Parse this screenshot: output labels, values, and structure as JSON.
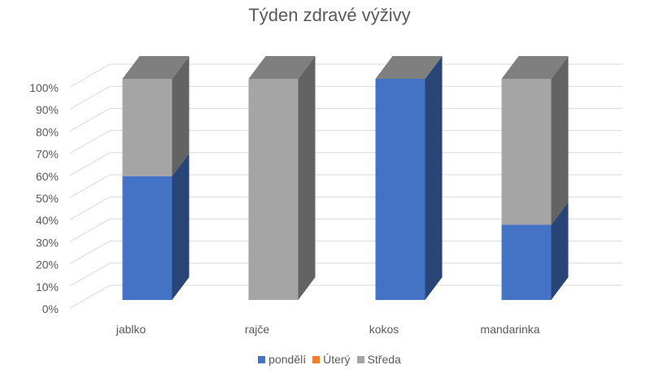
{
  "chart_data": {
    "type": "bar",
    "stacked": "100%",
    "style": "3d",
    "title": "Týden zdravé výživy",
    "categories": [
      "jablko",
      "rajče",
      "kokos",
      "mandarinka"
    ],
    "series": [
      {
        "name": "pondělí",
        "color": "#4472C4",
        "values": [
          56,
          0,
          100,
          34
        ]
      },
      {
        "name": "Úterý",
        "color": "#ED7D31",
        "values": [
          0,
          0,
          0,
          0
        ]
      },
      {
        "name": "Středa",
        "color": "#A5A5A5",
        "values": [
          44,
          100,
          0,
          66
        ]
      }
    ],
    "ylim": [
      0,
      100
    ],
    "yticks": [
      "0%",
      "10%",
      "20%",
      "30%",
      "40%",
      "50%",
      "60%",
      "70%",
      "80%",
      "90%",
      "100%"
    ],
    "grid": true,
    "legend_position": "bottom"
  }
}
